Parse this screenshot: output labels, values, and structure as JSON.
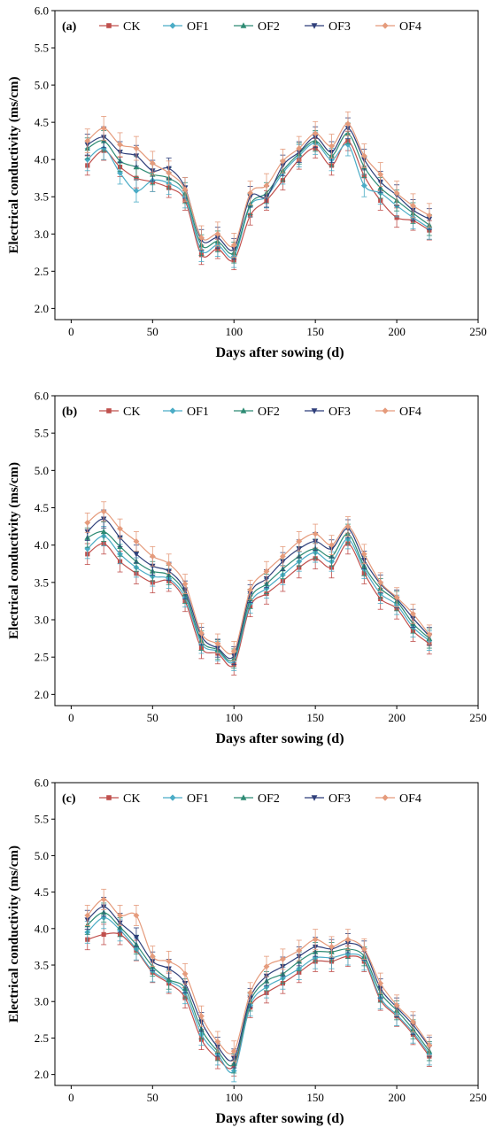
{
  "colors": {
    "CK": "#c0504d",
    "OF1": "#4bacc6",
    "OF2": "#2e8b74",
    "OF3": "#2f3f7a",
    "OF4": "#e59b7c"
  },
  "markers": {
    "CK": "square",
    "OF1": "diamond",
    "OF2": "triangle-up",
    "OF3": "triangle-down",
    "OF4": "diamond"
  },
  "chart_data": [
    {
      "type": "line",
      "panel_label": "(a)",
      "xlabel": "Days after sowing  (d)",
      "ylabel": "Electrical conductivity (ms/cm)",
      "xlim": [
        -10,
        250
      ],
      "ylim": [
        1.85,
        6.0
      ],
      "xticks": [
        0,
        50,
        100,
        150,
        200,
        250
      ],
      "yticks": [
        2.0,
        2.5,
        3.0,
        3.5,
        4.0,
        4.5,
        5.0,
        5.5,
        6.0
      ],
      "xtick_labels": [
        "0",
        "50",
        "100",
        "150",
        "200",
        "250"
      ],
      "ytick_labels": [
        "2.0",
        "2.5",
        "3.0",
        "3.5",
        "4.0",
        "4.5",
        "5.0",
        "5.5",
        "6.0"
      ],
      "grid": false,
      "legend_position": "top",
      "x": [
        10,
        20,
        30,
        40,
        50,
        60,
        70,
        80,
        90,
        100,
        110,
        120,
        130,
        140,
        150,
        160,
        170,
        180,
        190,
        200,
        210,
        220
      ],
      "series": [
        {
          "name": "CK",
          "values": [
            3.92,
            4.12,
            3.9,
            3.75,
            3.7,
            3.62,
            3.45,
            2.72,
            2.8,
            2.65,
            3.25,
            3.45,
            3.72,
            4.0,
            4.15,
            3.92,
            4.25,
            3.78,
            3.45,
            3.22,
            3.18,
            3.05
          ],
          "error": 0.13
        },
        {
          "name": "OF1",
          "values": [
            4.0,
            4.15,
            3.82,
            3.58,
            3.72,
            3.68,
            3.5,
            2.78,
            2.85,
            2.7,
            3.38,
            3.5,
            3.82,
            4.05,
            4.22,
            4.0,
            4.2,
            3.65,
            3.55,
            3.38,
            3.22,
            3.08
          ],
          "error": 0.15
        },
        {
          "name": "OF2",
          "values": [
            4.15,
            4.25,
            3.98,
            3.9,
            3.8,
            3.75,
            3.55,
            2.85,
            2.9,
            2.75,
            3.4,
            3.55,
            3.85,
            4.08,
            4.25,
            4.05,
            4.35,
            3.9,
            3.62,
            3.45,
            3.28,
            3.12
          ],
          "error": 0.14
        },
        {
          "name": "OF3",
          "values": [
            4.2,
            4.3,
            4.1,
            4.05,
            3.85,
            3.88,
            3.62,
            2.92,
            2.95,
            2.8,
            3.5,
            3.5,
            3.92,
            4.1,
            4.3,
            4.1,
            4.42,
            4.0,
            3.7,
            3.52,
            3.32,
            3.2
          ],
          "error": 0.14
        },
        {
          "name": "OF4",
          "values": [
            4.25,
            4.42,
            4.2,
            4.15,
            3.95,
            3.82,
            3.6,
            2.95,
            3.0,
            2.85,
            3.55,
            3.65,
            3.98,
            4.15,
            4.35,
            4.18,
            4.48,
            4.05,
            3.8,
            3.55,
            3.38,
            3.25
          ],
          "error": 0.16
        }
      ]
    },
    {
      "type": "line",
      "panel_label": "(b)",
      "xlabel": "Days after sowing  (d)",
      "ylabel": "Electrical conductivity (ms/cm)",
      "xlim": [
        -10,
        250
      ],
      "ylim": [
        1.85,
        6.0
      ],
      "xticks": [
        0,
        50,
        100,
        150,
        200,
        250
      ],
      "yticks": [
        2.0,
        2.5,
        3.0,
        3.5,
        4.0,
        4.5,
        5.0,
        5.5,
        6.0
      ],
      "xtick_labels": [
        "0",
        "50",
        "100",
        "150",
        "200",
        "250"
      ],
      "ytick_labels": [
        "2.0",
        "2.5",
        "3.0",
        "3.5",
        "4.0",
        "4.5",
        "5.0",
        "5.5",
        "6.0"
      ],
      "grid": false,
      "legend_position": "top",
      "x": [
        10,
        20,
        30,
        40,
        50,
        60,
        70,
        80,
        90,
        100,
        110,
        120,
        130,
        140,
        150,
        160,
        170,
        180,
        190,
        200,
        210,
        220
      ],
      "series": [
        {
          "name": "CK",
          "values": [
            3.88,
            4.02,
            3.78,
            3.62,
            3.5,
            3.52,
            3.25,
            2.62,
            2.55,
            2.4,
            3.18,
            3.35,
            3.52,
            3.7,
            3.82,
            3.7,
            4.02,
            3.62,
            3.28,
            3.15,
            2.85,
            2.68
          ],
          "error": 0.14
        },
        {
          "name": "OF1",
          "values": [
            3.95,
            4.12,
            3.88,
            3.7,
            3.58,
            3.55,
            3.3,
            2.68,
            2.58,
            2.45,
            3.22,
            3.42,
            3.6,
            3.78,
            3.9,
            3.78,
            4.08,
            3.68,
            3.35,
            3.2,
            2.9,
            2.72
          ],
          "error": 0.13
        },
        {
          "name": "OF2",
          "values": [
            4.1,
            4.18,
            3.98,
            3.78,
            3.65,
            3.6,
            3.35,
            2.72,
            2.6,
            2.48,
            3.28,
            3.48,
            3.68,
            3.85,
            3.95,
            3.85,
            4.15,
            3.72,
            3.42,
            3.25,
            2.95,
            2.75
          ],
          "error": 0.13
        },
        {
          "name": "OF3",
          "values": [
            4.18,
            4.35,
            4.1,
            3.88,
            3.72,
            3.65,
            3.4,
            2.78,
            2.62,
            2.52,
            3.35,
            3.55,
            3.78,
            3.95,
            4.05,
            3.95,
            4.22,
            3.8,
            3.48,
            3.28,
            3.02,
            2.78
          ],
          "error": 0.12
        },
        {
          "name": "OF4",
          "values": [
            4.3,
            4.45,
            4.22,
            4.05,
            3.85,
            3.75,
            3.48,
            2.82,
            2.68,
            2.58,
            3.4,
            3.65,
            3.85,
            4.05,
            4.15,
            4.0,
            4.25,
            3.88,
            3.5,
            3.3,
            3.08,
            2.8
          ],
          "error": 0.13
        }
      ]
    },
    {
      "type": "line",
      "panel_label": "(c)",
      "xlabel": "Days after sowing  (d)",
      "ylabel": "Electrical conductivity (ms/cm)",
      "xlim": [
        -10,
        250
      ],
      "ylim": [
        1.85,
        6.0
      ],
      "xticks": [
        0,
        50,
        100,
        150,
        200,
        250
      ],
      "yticks": [
        2.0,
        2.5,
        3.0,
        3.5,
        4.0,
        4.5,
        5.0,
        5.5,
        6.0
      ],
      "xtick_labels": [
        "0",
        "50",
        "100",
        "150",
        "200",
        "250"
      ],
      "ytick_labels": [
        "2.0",
        "2.5",
        "3.0",
        "3.5",
        "4.0",
        "4.5",
        "5.0",
        "5.5",
        "6.0"
      ],
      "grid": false,
      "legend_position": "top",
      "x": [
        10,
        20,
        30,
        40,
        50,
        60,
        70,
        80,
        90,
        100,
        110,
        120,
        130,
        140,
        150,
        160,
        170,
        180,
        190,
        200,
        210,
        220
      ],
      "series": [
        {
          "name": "CK",
          "values": [
            3.85,
            3.92,
            3.92,
            3.7,
            3.4,
            3.25,
            3.05,
            2.48,
            2.22,
            2.12,
            2.92,
            3.12,
            3.25,
            3.4,
            3.55,
            3.55,
            3.62,
            3.55,
            3.02,
            2.8,
            2.55,
            2.25
          ],
          "error": 0.14
        },
        {
          "name": "OF1",
          "values": [
            3.95,
            4.15,
            3.98,
            3.72,
            3.42,
            3.28,
            3.12,
            2.55,
            2.28,
            2.05,
            2.95,
            3.2,
            3.32,
            3.45,
            3.6,
            3.6,
            3.65,
            3.58,
            3.05,
            2.82,
            2.58,
            2.28
          ],
          "error": 0.15
        },
        {
          "name": "OF2",
          "values": [
            4.05,
            4.22,
            4.02,
            3.78,
            3.48,
            3.3,
            3.18,
            2.62,
            2.32,
            2.15,
            3.0,
            3.28,
            3.38,
            3.55,
            3.68,
            3.68,
            3.72,
            3.62,
            3.12,
            2.88,
            2.62,
            2.32
          ],
          "error": 0.13
        },
        {
          "name": "OF3",
          "values": [
            4.12,
            4.3,
            4.08,
            3.88,
            3.55,
            3.45,
            3.25,
            2.72,
            2.38,
            2.22,
            3.05,
            3.35,
            3.48,
            3.62,
            3.75,
            3.72,
            3.8,
            3.7,
            3.18,
            2.92,
            2.68,
            2.38
          ],
          "error": 0.13
        },
        {
          "name": "OF4",
          "values": [
            4.18,
            4.4,
            4.18,
            4.18,
            3.62,
            3.55,
            3.38,
            2.8,
            2.45,
            2.32,
            3.12,
            3.48,
            3.58,
            3.7,
            3.85,
            3.75,
            3.85,
            3.72,
            3.25,
            2.95,
            2.72,
            2.4
          ],
          "error": 0.14
        }
      ]
    }
  ]
}
